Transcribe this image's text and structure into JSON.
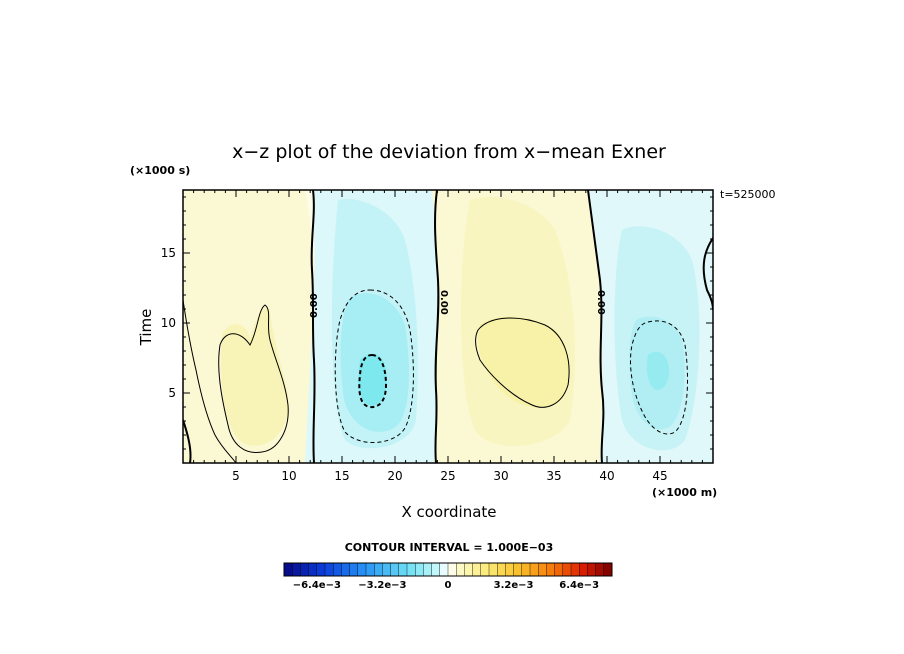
{
  "chart_data": {
    "type": "heatmap",
    "title": "x−z plot of the deviation from x−mean Exner",
    "xlabel": "X coordinate",
    "ylabel": "Time",
    "x_unit": "(×1000 m)",
    "y_unit": "(×1000 s)",
    "annotation": "t=525000",
    "xlim": [
      0,
      50
    ],
    "ylim": [
      0,
      19.5
    ],
    "x_ticks": [
      5,
      10,
      15,
      20,
      25,
      30,
      35,
      40,
      45
    ],
    "y_ticks": [
      5,
      10,
      15
    ],
    "contour_interval_text": "CONTOUR INTERVAL = 1.000E−03",
    "zero_contour_label": "0.00",
    "colorbar": {
      "range": [
        -0.008,
        0.008
      ],
      "tick_values": [
        -0.0064,
        -0.0032,
        0,
        0.0032,
        0.0064
      ],
      "tick_labels": [
        "−6.4e−3",
        "−3.2e−3",
        "0",
        "3.2e−3",
        "6.4e−3"
      ]
    },
    "field_features": [
      {
        "kind": "positive",
        "x": 6.5,
        "y": 6.5,
        "value": 0.0012
      },
      {
        "kind": "negative",
        "x": 17.8,
        "y": 6.5,
        "value": -0.0032
      },
      {
        "kind": "positive",
        "x": 31.5,
        "y": 7.5,
        "value": 0.0015
      },
      {
        "kind": "negative",
        "x": 44.5,
        "y": 7.0,
        "value": -0.0022
      }
    ],
    "zero_contours_x": [
      12.2,
      23.8,
      38.9
    ],
    "colors": {
      "neg_dark": "#0a0a8c",
      "neg_light": "#bdf5f8",
      "pos_light": "#fbf7c2",
      "pos_dark": "#7a0000"
    }
  }
}
